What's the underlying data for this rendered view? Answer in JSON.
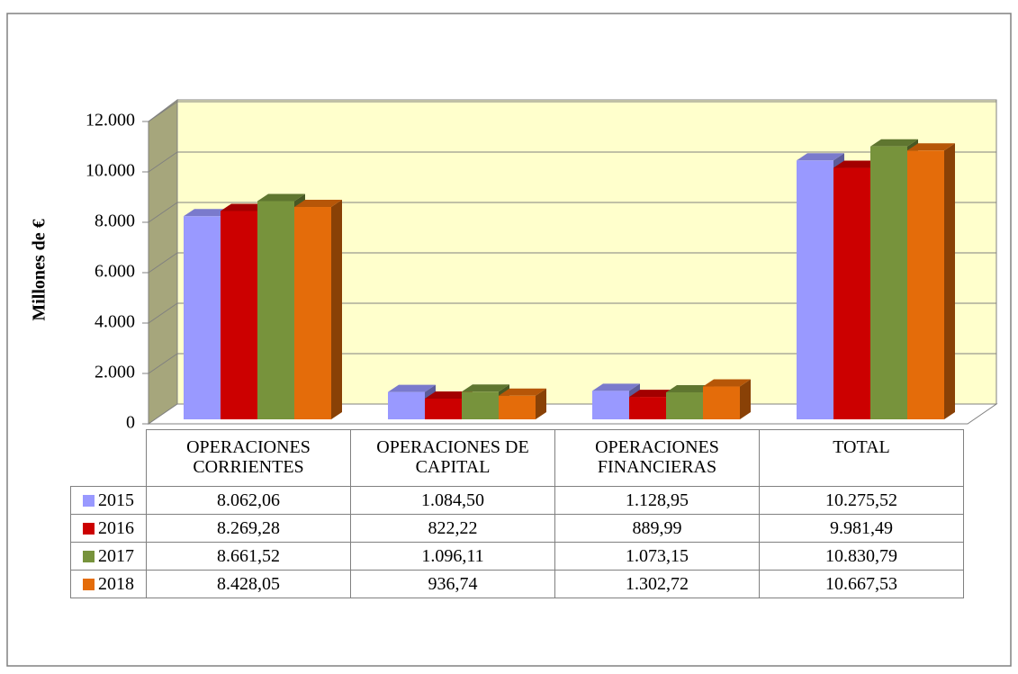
{
  "chart_data": {
    "type": "bar3d",
    "y_axis_label": "Millones de €",
    "categories": [
      "OPERACIONES CORRIENTES",
      "OPERACIONES DE CAPITAL",
      "OPERACIONES FINANCIERAS",
      "TOTAL"
    ],
    "series": [
      {
        "name": "2015",
        "color": "#9999ff",
        "values": [
          8062.06,
          1084.5,
          1128.95,
          10275.52
        ],
        "value_labels": [
          "8.062,06",
          "1.084,50",
          "1.128,95",
          "10.275,52"
        ]
      },
      {
        "name": "2016",
        "color": "#cc0000",
        "values": [
          8269.28,
          822.22,
          889.99,
          9981.49
        ],
        "value_labels": [
          "8.269,28",
          "822,22",
          "889,99",
          "9.981,49"
        ]
      },
      {
        "name": "2017",
        "color": "#77933c",
        "values": [
          8661.52,
          1096.11,
          1073.15,
          10830.79
        ],
        "value_labels": [
          "8.661,52",
          "1.096,11",
          "1.073,15",
          "10.830,79"
        ]
      },
      {
        "name": "2018",
        "color": "#e46c0a",
        "values": [
          8428.05,
          936.74,
          1302.72,
          10667.53
        ],
        "value_labels": [
          "8.428,05",
          "936,74",
          "1.302,72",
          "10.667,53"
        ]
      }
    ],
    "ylim": [
      0,
      12000
    ],
    "yticks": [
      0,
      {
        "value": 2000,
        "label": "2.000"
      },
      {
        "value": 4000,
        "label": "4.000"
      },
      {
        "value": 6000,
        "label": "6.000"
      },
      {
        "value": 8000,
        "label": "8.000"
      },
      {
        "value": 10000,
        "label": "10.000"
      },
      {
        "value": 12000,
        "label": "12.000"
      }
    ],
    "grid": true
  }
}
